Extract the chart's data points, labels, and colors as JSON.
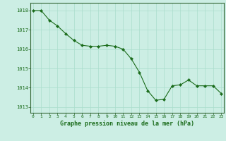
{
  "x": [
    0,
    1,
    2,
    3,
    4,
    5,
    6,
    7,
    8,
    9,
    10,
    11,
    12,
    13,
    14,
    15,
    16,
    17,
    18,
    19,
    20,
    21,
    22,
    23
  ],
  "y": [
    1018.0,
    1018.0,
    1017.5,
    1017.2,
    1016.8,
    1016.45,
    1016.2,
    1016.15,
    1016.15,
    1016.2,
    1016.15,
    1016.0,
    1015.5,
    1014.8,
    1013.85,
    1013.35,
    1013.4,
    1014.1,
    1014.15,
    1014.4,
    1014.1,
    1014.1,
    1014.1,
    1013.7
  ],
  "line_color": "#1a6b1a",
  "marker_color": "#1a6b1a",
  "bg_color": "#cceee4",
  "grid_color_major": "#aaddcc",
  "grid_color_minor": "#bbddcc",
  "axis_color": "#336633",
  "tick_color": "#1a6b1a",
  "label_color": "#1a6b1a",
  "xlabel": "Graphe pression niveau de la mer (hPa)",
  "yticks": [
    1013,
    1014,
    1015,
    1016,
    1017,
    1018
  ],
  "xticks": [
    0,
    1,
    2,
    3,
    4,
    5,
    6,
    7,
    8,
    9,
    10,
    11,
    12,
    13,
    14,
    15,
    16,
    17,
    18,
    19,
    20,
    21,
    22,
    23
  ],
  "ylim": [
    1012.7,
    1018.4
  ],
  "xlim": [
    -0.3,
    23.3
  ]
}
